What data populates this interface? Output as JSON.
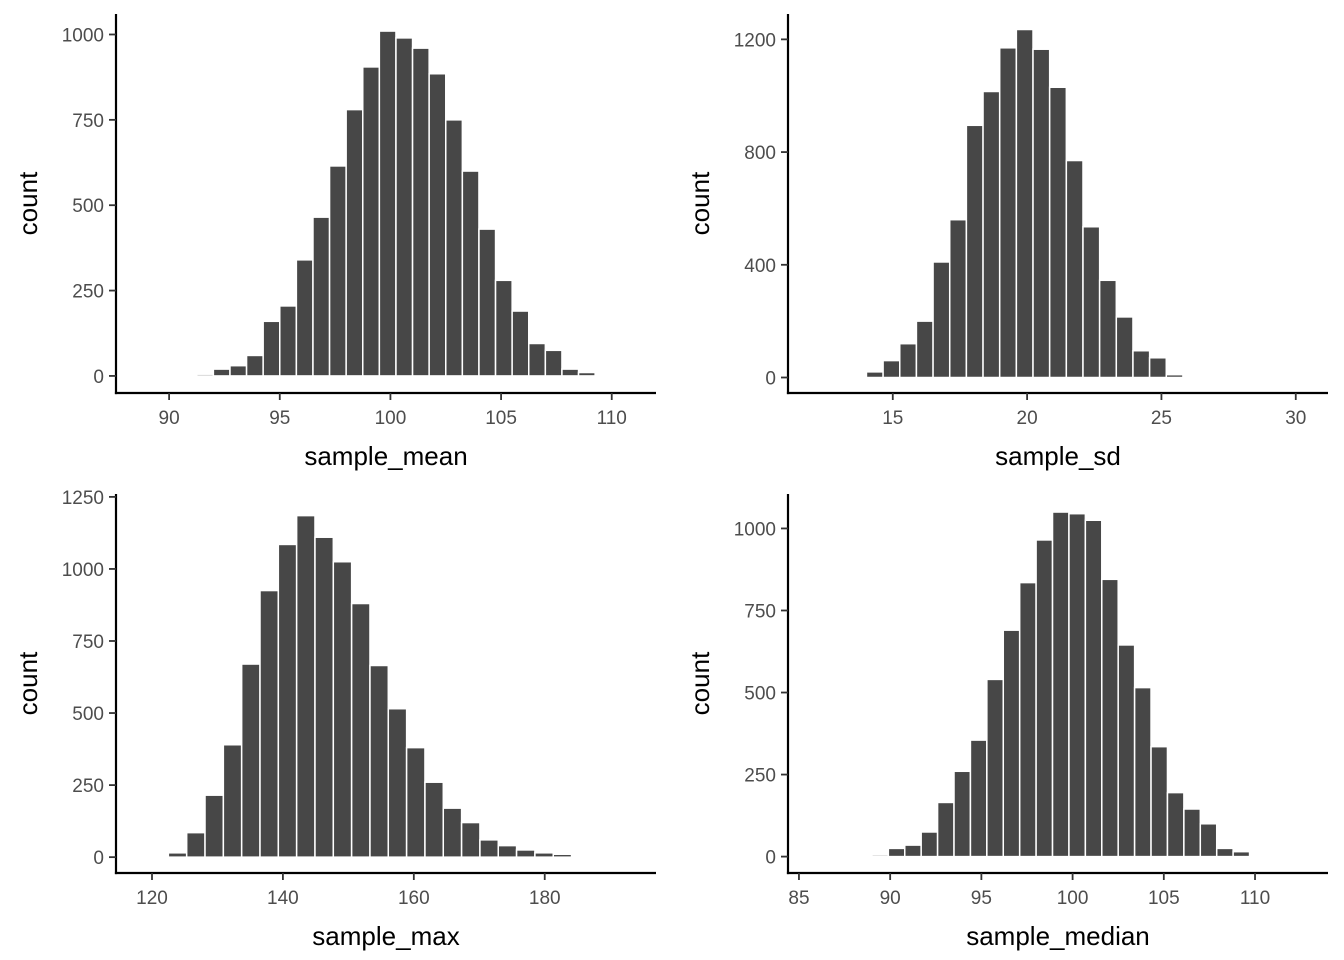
{
  "chart_data": [
    {
      "type": "bar",
      "xlabel": "sample_mean",
      "ylabel": "count",
      "xlim": [
        87.6,
        112.0
      ],
      "ylim": [
        -50,
        1060
      ],
      "xticks": [
        90,
        95,
        100,
        105,
        110
      ],
      "yticks": [
        0,
        250,
        500,
        750,
        1000
      ],
      "bin_start": 90.5,
      "bin_width": 0.75,
      "values": [
        0,
        5,
        20,
        30,
        60,
        160,
        205,
        340,
        465,
        615,
        780,
        905,
        1010,
        990,
        960,
        885,
        750,
        600,
        430,
        280,
        190,
        95,
        75,
        20,
        10,
        0,
        0,
        0
      ],
      "grid": false
    },
    {
      "type": "bar",
      "xlabel": "sample_sd",
      "ylabel": "count",
      "xlim": [
        11.1,
        31.2
      ],
      "ylim": [
        -55,
        1290
      ],
      "xticks": [
        15,
        20,
        25,
        30
      ],
      "yticks": [
        0,
        400,
        800,
        1200
      ],
      "bin_start": 13.4,
      "bin_width": 0.62,
      "values": [
        0,
        20,
        60,
        120,
        200,
        410,
        560,
        895,
        1015,
        1170,
        1235,
        1165,
        1030,
        770,
        535,
        345,
        215,
        95,
        70,
        10,
        0,
        0
      ],
      "grid": false
    },
    {
      "type": "bar",
      "xlabel": "sample_max",
      "ylabel": "count",
      "xlim": [
        114.5,
        197.0
      ],
      "ylim": [
        -55,
        1260
      ],
      "xticks": [
        120,
        140,
        160,
        180
      ],
      "yticks": [
        0,
        250,
        500,
        750,
        1000,
        1250
      ],
      "bin_start": 122.5,
      "bin_width": 2.8,
      "values": [
        15,
        85,
        215,
        390,
        670,
        925,
        1085,
        1185,
        1110,
        1025,
        880,
        665,
        515,
        380,
        260,
        170,
        120,
        60,
        40,
        25,
        15,
        10,
        0
      ],
      "grid": false
    },
    {
      "type": "bar",
      "xlabel": "sample_median",
      "ylabel": "count",
      "xlim": [
        84.4,
        114.0
      ],
      "ylim": [
        -50,
        1105
      ],
      "xticks": [
        85,
        90,
        95,
        100,
        105,
        110
      ],
      "yticks": [
        0,
        250,
        500,
        750,
        1000
      ],
      "bin_start": 89.0,
      "bin_width": 0.9,
      "values": [
        5,
        25,
        35,
        75,
        165,
        260,
        355,
        540,
        690,
        835,
        965,
        1050,
        1045,
        1025,
        845,
        645,
        515,
        335,
        195,
        145,
        100,
        25,
        15
      ],
      "grid": false
    }
  ]
}
